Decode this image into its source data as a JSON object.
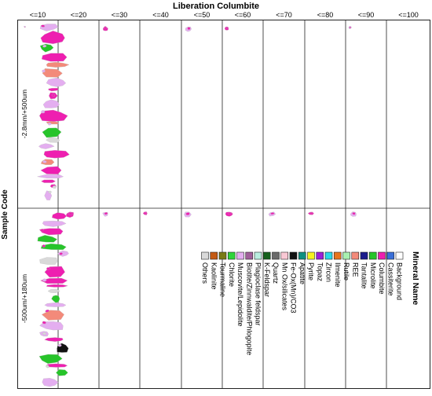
{
  "chart_data": {
    "type": "table",
    "title": "Liberation Columbite",
    "ylabel": "Sample Code",
    "columns": [
      "<=10",
      "<=20",
      "<=30",
      "<=40",
      "<=50",
      "<=60",
      "<=70",
      "<=80",
      "<=90",
      "<=100"
    ],
    "rows": [
      {
        "label": "-2.8mm/+500um"
      },
      {
        "label": "-500um/+180um"
      }
    ],
    "legend": {
      "title": "Mineral Name",
      "items": [
        {
          "name": "Background",
          "color": "#ffffff"
        },
        {
          "name": "Cassiterite",
          "color": "#3a6fd8"
        },
        {
          "name": "Columbite",
          "color": "#ee1fb0"
        },
        {
          "name": "Microlite",
          "color": "#27c42a"
        },
        {
          "name": "Tantalite",
          "color": "#1c1c8c"
        },
        {
          "name": "REE",
          "color": "#f38a7a"
        },
        {
          "name": "Rutile",
          "color": "#a8f0b0"
        },
        {
          "name": "Ilmenite",
          "color": "#e8741c"
        },
        {
          "name": "Zircon",
          "color": "#29d9e6"
        },
        {
          "name": "Topaz",
          "color": "#9b1fd9"
        },
        {
          "name": "Pyrite",
          "color": "#f5f21f"
        },
        {
          "name": "Apatite",
          "color": "#0f8f80"
        },
        {
          "name": "Fe-Ox(Mn)/CO3",
          "color": "#111111"
        },
        {
          "name": "Mn Ox/silicates",
          "color": "#f9c8d4"
        },
        {
          "name": "Quartz",
          "color": "#6a6a6a"
        },
        {
          "name": "K-Feldspar",
          "color": "#14611c"
        },
        {
          "name": "Plagioclase feldspar",
          "color": "#b9eedf"
        },
        {
          "name": "Biotite/Zinnwaldite/Phlogopite",
          "color": "#a05f9a"
        },
        {
          "name": "Muscovite/Lepidolite",
          "color": "#e4aef0"
        },
        {
          "name": "Chlorite",
          "color": "#2fd43a"
        },
        {
          "name": "Tourmaline",
          "color": "#7a7a14"
        },
        {
          "name": "Kaolinite",
          "color": "#c45a14"
        },
        {
          "name": "Others",
          "color": "#d9d9d9"
        }
      ]
    }
  }
}
